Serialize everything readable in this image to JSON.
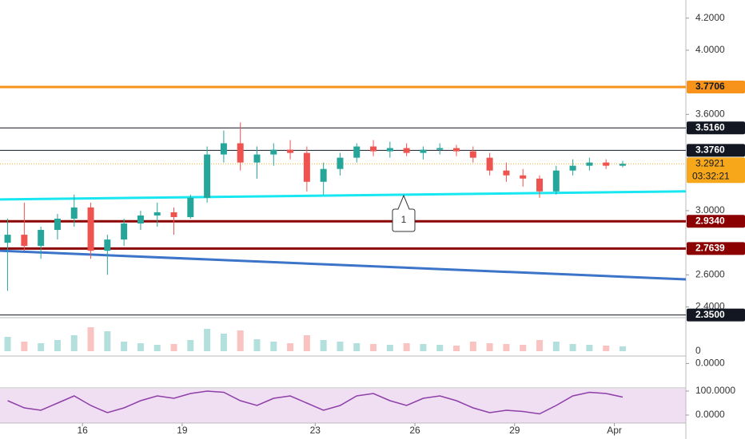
{
  "chart_data": {
    "type": "candlestick",
    "x": [
      13.75,
      14.25,
      14.75,
      15.25,
      15.75,
      16.25,
      16.75,
      17.25,
      17.75,
      18.25,
      18.75,
      19.25,
      19.75,
      20.25,
      20.75,
      21.25,
      21.75,
      22.25,
      22.75,
      23.25,
      23.75,
      24.25,
      24.75,
      25.25,
      25.75,
      26.25,
      26.75,
      27.25,
      27.75,
      28.25,
      28.75,
      29.25,
      29.75,
      30.25,
      30.75,
      31.25,
      31.75,
      32.25
    ],
    "open": [
      2.8,
      2.85,
      2.78,
      2.88,
      2.95,
      3.02,
      2.75,
      2.82,
      2.92,
      2.97,
      2.99,
      2.96,
      3.08,
      3.35,
      3.42,
      3.3,
      3.35,
      3.38,
      3.36,
      3.18,
      3.26,
      3.33,
      3.4,
      3.37,
      3.39,
      3.36,
      3.38,
      3.39,
      3.37,
      3.33,
      3.25,
      3.22,
      3.2,
      3.12,
      3.25,
      3.28,
      3.3,
      3.28
    ],
    "high": [
      2.95,
      3.05,
      2.9,
      2.98,
      3.1,
      3.05,
      2.85,
      2.95,
      3.0,
      3.05,
      3.02,
      3.1,
      3.4,
      3.5,
      3.55,
      3.4,
      3.42,
      3.44,
      3.4,
      3.3,
      3.36,
      3.42,
      3.44,
      3.43,
      3.42,
      3.4,
      3.42,
      3.41,
      3.4,
      3.36,
      3.3,
      3.26,
      3.22,
      3.28,
      3.32,
      3.33,
      3.32,
      3.31
    ],
    "low": [
      2.5,
      2.75,
      2.7,
      2.82,
      2.9,
      2.7,
      2.6,
      2.78,
      2.88,
      2.9,
      2.85,
      2.95,
      3.05,
      3.3,
      3.25,
      3.2,
      3.28,
      3.32,
      3.12,
      3.1,
      3.22,
      3.3,
      3.34,
      3.33,
      3.34,
      3.32,
      3.35,
      3.34,
      3.3,
      3.22,
      3.18,
      3.15,
      3.08,
      3.1,
      3.22,
      3.25,
      3.26,
      3.27
    ],
    "close": [
      2.85,
      2.78,
      2.88,
      2.95,
      3.02,
      2.75,
      2.82,
      2.92,
      2.97,
      2.99,
      2.96,
      3.08,
      3.35,
      3.42,
      3.3,
      3.35,
      3.38,
      3.36,
      3.18,
      3.26,
      3.33,
      3.4,
      3.37,
      3.39,
      3.36,
      3.38,
      3.39,
      3.37,
      3.33,
      3.25,
      3.22,
      3.2,
      3.12,
      3.25,
      3.28,
      3.3,
      3.28,
      3.2921
    ],
    "up_color": "#26a69a",
    "down_color": "#ef5350",
    "xlim": [
      13.52,
      34.15
    ],
    "xticks": [
      {
        "value": 16,
        "label": "16"
      },
      {
        "value": 19,
        "label": "19"
      },
      {
        "value": 23,
        "label": "23"
      },
      {
        "value": 26,
        "label": "26"
      },
      {
        "value": 29,
        "label": "29"
      },
      {
        "value": 32,
        "label": "Apr"
      }
    ],
    "ylim": [
      2.333,
      4.313
    ],
    "yticks": [
      {
        "value": 4.2,
        "label": "4.2000"
      },
      {
        "value": 4.0,
        "label": "4.0000"
      },
      {
        "value": 3.6,
        "label": "3.6000"
      },
      {
        "value": 3.0,
        "label": "3.0000"
      },
      {
        "value": 2.6,
        "label": "2.6000"
      },
      {
        "value": 2.4,
        "label": "2.4000"
      }
    ],
    "levels": [
      {
        "value": 3.7706,
        "label": "3.7706",
        "color": "#f7931a",
        "text_color": "#131722",
        "line_width": 3
      },
      {
        "value": 3.516,
        "label": "3.5160",
        "color": "#131722",
        "text_color": "#ffffff",
        "line_width": 1
      },
      {
        "value": 3.376,
        "label": "3.3760",
        "color": "#131722",
        "text_color": "#ffffff",
        "line_width": 1
      },
      {
        "value": 2.934,
        "label": "2.9340",
        "color": "#8b0000",
        "text_color": "#ffffff",
        "line_width": 3
      },
      {
        "value": 2.7639,
        "label": "2.7639",
        "color": "#8b0000",
        "text_color": "#ffffff",
        "line_width": 3
      },
      {
        "value": 2.35,
        "label": "2.3500",
        "color": "#131722",
        "text_color": "#ffffff",
        "line_width": 1
      }
    ],
    "last_price": {
      "value": 3.2921,
      "label": "3.2921",
      "countdown": "03:32:21",
      "color": "#f7a81a"
    },
    "trendlines": [
      {
        "start": 3.07,
        "end": 3.12,
        "color": "#18e6f0"
      },
      {
        "start": 2.75,
        "end": 2.572,
        "color": "#3b74c9"
      }
    ],
    "annotation": "1",
    "volume": {
      "values": [
        18,
        12,
        10,
        14,
        20,
        30,
        25,
        12,
        10,
        8,
        9,
        14,
        28,
        22,
        26,
        15,
        12,
        10,
        20,
        14,
        12,
        10,
        9,
        8,
        10,
        9,
        8,
        7,
        12,
        10,
        9,
        8,
        14,
        12,
        9,
        8,
        7,
        6
      ],
      "ylim": [
        0,
        40
      ],
      "yticks": [
        0
      ]
    },
    "oscillator": {
      "ylim": [
        -0.16,
        0.04
      ],
      "yticks": [
        {
          "value": 0,
          "label": "0.0000"
        }
      ]
    },
    "stoch_rsi": {
      "values": [
        60,
        30,
        20,
        50,
        80,
        40,
        10,
        30,
        60,
        80,
        70,
        90,
        100,
        95,
        60,
        40,
        70,
        80,
        50,
        20,
        40,
        80,
        90,
        60,
        40,
        70,
        80,
        60,
        30,
        10,
        20,
        15,
        5,
        40,
        80,
        95,
        90,
        75
      ],
      "ylim": [
        0,
        100
      ],
      "yticks": [
        {
          "value": 100,
          "label": "100.0000"
        },
        {
          "value": 0,
          "label": "0.0000"
        }
      ],
      "color": "#8e3fa8"
    }
  }
}
